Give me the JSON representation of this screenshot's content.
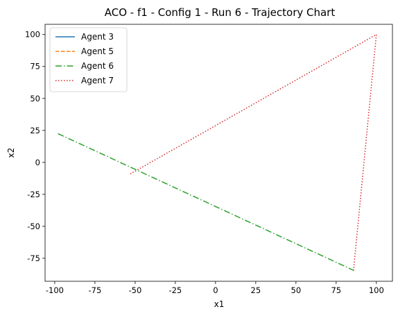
{
  "chart_data": {
    "type": "line",
    "title": "ACO - f1 - Config 1 - Run 6 - Trajectory Chart",
    "xlabel": "x1",
    "ylabel": "x2",
    "xlim": [
      -106,
      110
    ],
    "ylim": [
      -93,
      108
    ],
    "xticks": [
      -100,
      -75,
      -50,
      -25,
      0,
      25,
      50,
      75,
      100
    ],
    "yticks": [
      -75,
      -50,
      -25,
      0,
      25,
      50,
      75,
      100
    ],
    "legend_position": "top-left",
    "series": [
      {
        "name": "Agent 3",
        "color": "#1f77b4",
        "dash": "solid",
        "x": [],
        "y": []
      },
      {
        "name": "Agent 5",
        "color": "#ff7f0e",
        "dash": "dashed",
        "x": [],
        "y": []
      },
      {
        "name": "Agent 6",
        "color": "#2ca02c",
        "dash": "dashdot",
        "x": [
          -98,
          86
        ],
        "y": [
          22.5,
          -84.5
        ]
      },
      {
        "name": "Agent 7",
        "color": "#d62728",
        "dash": "dotted",
        "x": [
          -53,
          100,
          86,
          86
        ],
        "y": [
          -9,
          100,
          -82,
          -84.5
        ]
      }
    ]
  }
}
